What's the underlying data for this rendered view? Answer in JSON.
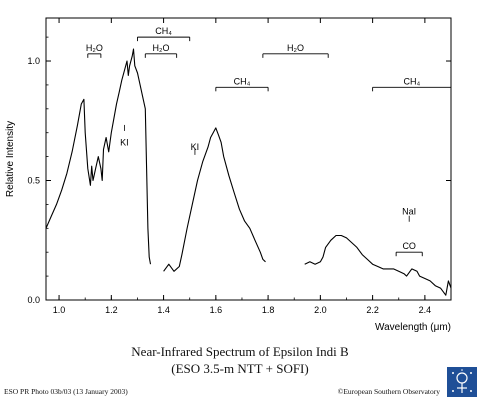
{
  "chart_data": {
    "type": "line",
    "xlabel": "Wavelength (μm)",
    "ylabel": "Relative Intensity",
    "xlim": [
      0.95,
      2.5
    ],
    "ylim": [
      0.0,
      1.18
    ],
    "xticks": [
      1.0,
      1.2,
      1.4,
      1.6,
      1.8,
      2.0,
      2.2,
      2.4
    ],
    "xtick_labels": [
      "1.0",
      "1.2",
      "1.4",
      "1.6",
      "1.8",
      "2.0",
      "2.2",
      "2.4"
    ],
    "yticks": [
      0.0,
      0.5,
      1.0
    ],
    "ytick_labels": [
      "0.0",
      "0.5",
      "1.0"
    ],
    "grid": false,
    "series": [
      {
        "segments": [
          [
            [
              0.95,
              0.3
            ],
            [
              0.97,
              0.35
            ],
            [
              0.99,
              0.4
            ],
            [
              1.01,
              0.46
            ],
            [
              1.03,
              0.53
            ],
            [
              1.05,
              0.62
            ],
            [
              1.07,
              0.73
            ],
            [
              1.085,
              0.82
            ],
            [
              1.095,
              0.84
            ],
            [
              1.1,
              0.7
            ],
            [
              1.11,
              0.55
            ],
            [
              1.12,
              0.48
            ],
            [
              1.125,
              0.56
            ],
            [
              1.13,
              0.5
            ],
            [
              1.14,
              0.55
            ],
            [
              1.15,
              0.6
            ],
            [
              1.16,
              0.55
            ],
            [
              1.165,
              0.5
            ],
            [
              1.17,
              0.63
            ],
            [
              1.18,
              0.68
            ],
            [
              1.19,
              0.62
            ],
            [
              1.2,
              0.7
            ],
            [
              1.21,
              0.76
            ],
            [
              1.22,
              0.82
            ],
            [
              1.23,
              0.87
            ],
            [
              1.24,
              0.92
            ],
            [
              1.25,
              0.96
            ],
            [
              1.26,
              1.0
            ],
            [
              1.265,
              0.94
            ],
            [
              1.27,
              0.98
            ],
            [
              1.28,
              1.02
            ],
            [
              1.285,
              1.05
            ],
            [
              1.29,
              0.98
            ],
            [
              1.3,
              0.95
            ],
            [
              1.31,
              0.9
            ],
            [
              1.32,
              0.85
            ],
            [
              1.33,
              0.8
            ],
            [
              1.335,
              0.55
            ],
            [
              1.34,
              0.3
            ],
            [
              1.345,
              0.18
            ],
            [
              1.35,
              0.15
            ]
          ],
          [
            [
              1.4,
              0.12
            ],
            [
              1.42,
              0.15
            ],
            [
              1.44,
              0.12
            ],
            [
              1.46,
              0.14
            ],
            [
              1.47,
              0.19
            ],
            [
              1.49,
              0.3
            ],
            [
              1.51,
              0.4
            ],
            [
              1.53,
              0.5
            ],
            [
              1.55,
              0.58
            ],
            [
              1.57,
              0.64
            ],
            [
              1.58,
              0.68
            ],
            [
              1.59,
              0.7
            ],
            [
              1.6,
              0.72
            ],
            [
              1.61,
              0.69
            ],
            [
              1.62,
              0.66
            ],
            [
              1.63,
              0.6
            ],
            [
              1.65,
              0.52
            ],
            [
              1.67,
              0.45
            ],
            [
              1.69,
              0.38
            ],
            [
              1.71,
              0.33
            ],
            [
              1.73,
              0.3
            ],
            [
              1.75,
              0.25
            ],
            [
              1.77,
              0.2
            ],
            [
              1.78,
              0.17
            ],
            [
              1.79,
              0.16
            ]
          ],
          [
            [
              1.94,
              0.15
            ],
            [
              1.96,
              0.16
            ],
            [
              1.98,
              0.15
            ],
            [
              2.0,
              0.16
            ],
            [
              2.01,
              0.18
            ],
            [
              2.02,
              0.22
            ],
            [
              2.04,
              0.25
            ],
            [
              2.06,
              0.27
            ],
            [
              2.08,
              0.27
            ],
            [
              2.1,
              0.26
            ],
            [
              2.12,
              0.24
            ],
            [
              2.14,
              0.22
            ],
            [
              2.16,
              0.19
            ],
            [
              2.18,
              0.17
            ],
            [
              2.2,
              0.15
            ],
            [
              2.22,
              0.14
            ],
            [
              2.24,
              0.13
            ],
            [
              2.26,
              0.13
            ],
            [
              2.28,
              0.13
            ],
            [
              2.3,
              0.12
            ],
            [
              2.32,
              0.11
            ],
            [
              2.33,
              0.1
            ],
            [
              2.35,
              0.13
            ],
            [
              2.37,
              0.12
            ],
            [
              2.38,
              0.1
            ],
            [
              2.4,
              0.09
            ],
            [
              2.42,
              0.08
            ],
            [
              2.44,
              0.06
            ],
            [
              2.46,
              0.05
            ],
            [
              2.48,
              0.02
            ],
            [
              2.49,
              0.08
            ],
            [
              2.5,
              0.05
            ]
          ]
        ]
      }
    ],
    "bands": [
      {
        "label": "H₂O",
        "x": [
          1.11,
          1.16
        ],
        "y": 1.03
      },
      {
        "label": "CH₄",
        "x": [
          1.3,
          1.5
        ],
        "y": 1.1
      },
      {
        "label": "H₂O",
        "x": [
          1.33,
          1.45
        ],
        "y": 1.03
      },
      {
        "label": "H₂O",
        "x": [
          1.78,
          2.03
        ],
        "y": 1.03
      },
      {
        "label": "CH₄",
        "x": [
          1.6,
          1.8
        ],
        "y": 0.89
      },
      {
        "label": "CH₄",
        "x": [
          2.2,
          2.5
        ],
        "y": 0.89
      },
      {
        "label": "CO",
        "x": [
          2.29,
          2.39
        ],
        "y": 0.2
      }
    ],
    "annotations": [
      {
        "label": "KI",
        "x": 1.25,
        "y": 0.66,
        "tick_y": 0.72
      },
      {
        "label": "KI",
        "x": 1.52,
        "y": 0.64,
        "tick_y": 0.62
      },
      {
        "label": "NaI",
        "x": 2.34,
        "y": 0.37,
        "tick_y": 0.34
      }
    ],
    "caption_title": "Near-Infrared Spectrum of Epsilon Indi B",
    "caption_subtitle": "(ESO 3.5-m NTT + SOFI)",
    "footer_left": "ESO PR Photo 03b/03 (13 January 2003)",
    "footer_right": "©European Southern Observatory",
    "line_color": "#000000"
  }
}
